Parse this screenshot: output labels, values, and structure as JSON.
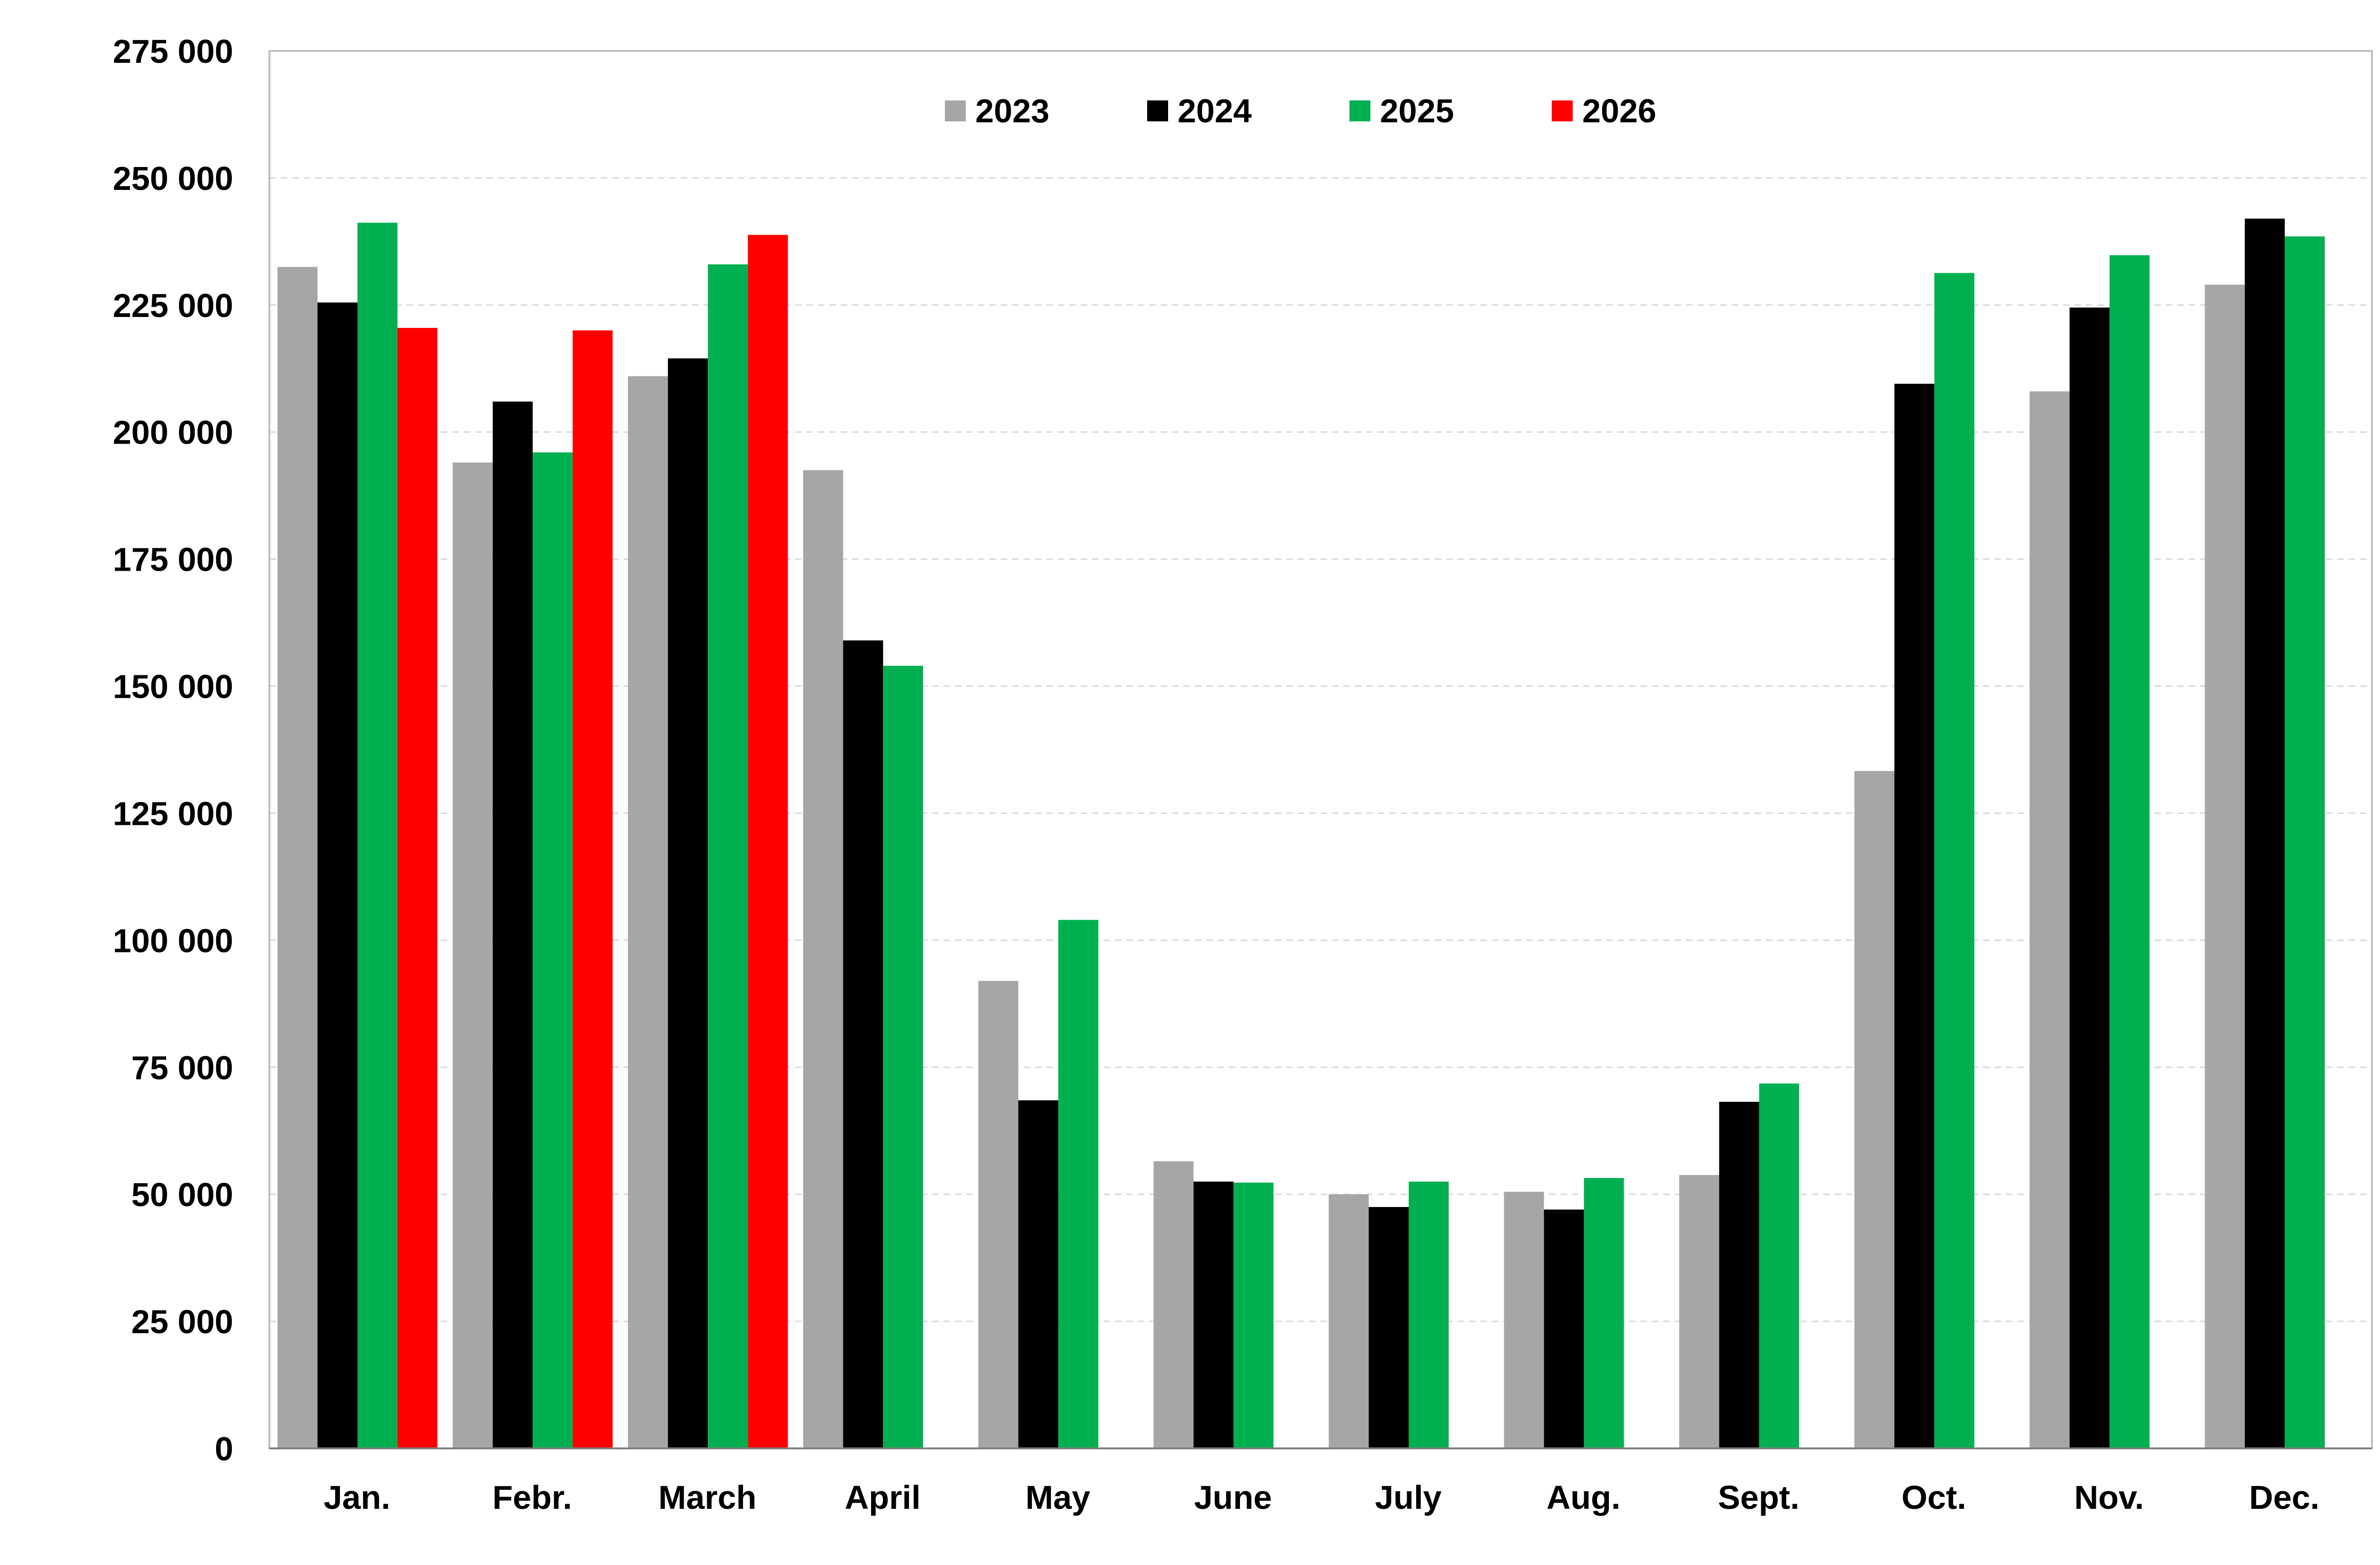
{
  "chart_data": {
    "type": "bar",
    "title": "",
    "xlabel": "",
    "ylabel": "",
    "ylim": [
      0,
      275000
    ],
    "yticks": [
      0,
      25000,
      50000,
      75000,
      100000,
      125000,
      150000,
      175000,
      200000,
      225000,
      250000,
      275000
    ],
    "ytick_labels": [
      "0",
      "25 000",
      "50 000",
      "75 000",
      "100 000",
      "125 000",
      "150 000",
      "175 000",
      "200 000",
      "225 000",
      "250 000",
      "275 000"
    ],
    "grid": true,
    "legend_position": "top-center",
    "categories": [
      "Jan.",
      "Febr.",
      "March",
      "April",
      "May",
      "June",
      "July",
      "Aug.",
      "Sept.",
      "Oct.",
      "Nov.",
      "Dec."
    ],
    "series": [
      {
        "name": "2023",
        "color": "#a6a6a6",
        "values": [
          232500,
          194000,
          211000,
          192500,
          92000,
          56500,
          50000,
          50500,
          53800,
          133300,
          208000,
          229000
        ]
      },
      {
        "name": "2024",
        "color": "#000000",
        "values": [
          225500,
          206000,
          214500,
          159000,
          68500,
          52500,
          47500,
          47000,
          68200,
          209500,
          224500,
          242000
        ]
      },
      {
        "name": "2025",
        "color": "#00b050",
        "values": [
          241200,
          196000,
          233000,
          154000,
          104000,
          52300,
          52500,
          53200,
          71800,
          231300,
          234800,
          238500
        ]
      },
      {
        "name": "2026",
        "color": "#ff0000",
        "values": [
          220500,
          220000,
          238800,
          null,
          null,
          null,
          null,
          null,
          null,
          null,
          null,
          null
        ]
      }
    ]
  }
}
